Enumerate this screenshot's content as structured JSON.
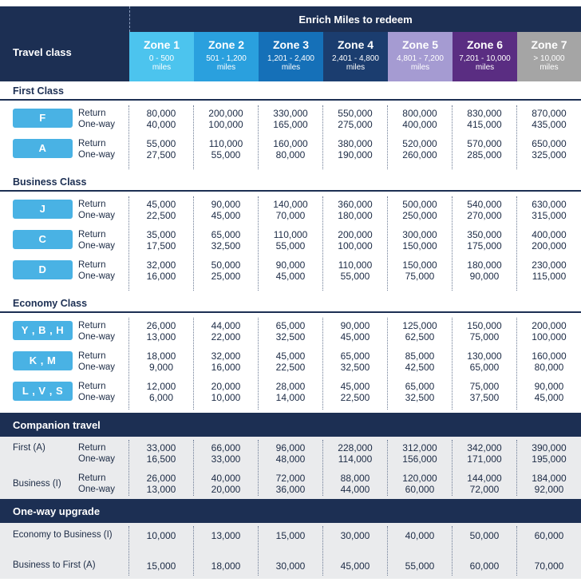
{
  "header": {
    "travel_class": "Travel class",
    "title": "Enrich Miles to redeem"
  },
  "zones": [
    {
      "name": "Zone 1",
      "range": "0 - 500",
      "unit": "miles",
      "color": "#4cc4ee"
    },
    {
      "name": "Zone 2",
      "range": "501 - 1,200",
      "unit": "miles",
      "color": "#2aa0de"
    },
    {
      "name": "Zone 3",
      "range": "1,201 - 2,400",
      "unit": "miles",
      "color": "#1570b8"
    },
    {
      "name": "Zone 4",
      "range": "2,401 - 4,800",
      "unit": "miles",
      "color": "#1b3d6f"
    },
    {
      "name": "Zone 5",
      "range": "4,801 - 7,200",
      "unit": "miles",
      "color": "#a59bd2"
    },
    {
      "name": "Zone 6",
      "range": "7,201 - 10,000",
      "unit": "miles",
      "color": "#5a2d82"
    },
    {
      "name": "Zone 7",
      "range": "> 10,000",
      "unit": "miles",
      "color": "#a5a5a5"
    }
  ],
  "labels": {
    "return": "Return",
    "one_way": "One-way"
  },
  "first_class": {
    "title": "First Class",
    "rows": [
      {
        "code": "F",
        "return": [
          "80,000",
          "200,000",
          "330,000",
          "550,000",
          "800,000",
          "830,000",
          "870,000"
        ],
        "one_way": [
          "40,000",
          "100,000",
          "165,000",
          "275,000",
          "400,000",
          "415,000",
          "435,000"
        ]
      },
      {
        "code": "A",
        "return": [
          "55,000",
          "110,000",
          "160,000",
          "380,000",
          "520,000",
          "570,000",
          "650,000"
        ],
        "one_way": [
          "27,500",
          "55,000",
          "80,000",
          "190,000",
          "260,000",
          "285,000",
          "325,000"
        ]
      }
    ]
  },
  "business_class": {
    "title": "Business Class",
    "rows": [
      {
        "code": "J",
        "return": [
          "45,000",
          "90,000",
          "140,000",
          "360,000",
          "500,000",
          "540,000",
          "630,000"
        ],
        "one_way": [
          "22,500",
          "45,000",
          "70,000",
          "180,000",
          "250,000",
          "270,000",
          "315,000"
        ]
      },
      {
        "code": "C",
        "return": [
          "35,000",
          "65,000",
          "110,000",
          "200,000",
          "300,000",
          "350,000",
          "400,000"
        ],
        "one_way": [
          "17,500",
          "32,500",
          "55,000",
          "100,000",
          "150,000",
          "175,000",
          "200,000"
        ]
      },
      {
        "code": "D",
        "return": [
          "32,000",
          "50,000",
          "90,000",
          "110,000",
          "150,000",
          "180,000",
          "230,000"
        ],
        "one_way": [
          "16,000",
          "25,000",
          "45,000",
          "55,000",
          "75,000",
          "90,000",
          "115,000"
        ]
      }
    ]
  },
  "economy_class": {
    "title": "Economy Class",
    "rows": [
      {
        "code": "Y , B , H",
        "return": [
          "26,000",
          "44,000",
          "65,000",
          "90,000",
          "125,000",
          "150,000",
          "200,000"
        ],
        "one_way": [
          "13,000",
          "22,000",
          "32,500",
          "45,000",
          "62,500",
          "75,000",
          "100,000"
        ]
      },
      {
        "code": "K , M",
        "return": [
          "18,000",
          "32,000",
          "45,000",
          "65,000",
          "85,000",
          "130,000",
          "160,000"
        ],
        "one_way": [
          "9,000",
          "16,000",
          "22,500",
          "32,500",
          "42,500",
          "65,000",
          "80,000"
        ]
      },
      {
        "code": "L , V , S",
        "return": [
          "12,000",
          "20,000",
          "28,000",
          "45,000",
          "65,000",
          "75,000",
          "90,000"
        ],
        "one_way": [
          "6,000",
          "10,000",
          "14,000",
          "22,500",
          "32,500",
          "37,500",
          "45,000"
        ]
      }
    ]
  },
  "companion": {
    "title": "Companion travel",
    "rows": [
      {
        "label": "First (A)",
        "return": [
          "33,000",
          "66,000",
          "96,000",
          "228,000",
          "312,000",
          "342,000",
          "390,000"
        ],
        "one_way": [
          "16,500",
          "33,000",
          "48,000",
          "114,000",
          "156,000",
          "171,000",
          "195,000"
        ]
      },
      {
        "label": "Business (I)",
        "return": [
          "26,000",
          "40,000",
          "72,000",
          "88,000",
          "120,000",
          "144,000",
          "184,000"
        ],
        "one_way": [
          "13,000",
          "20,000",
          "36,000",
          "44,000",
          "60,000",
          "72,000",
          "92,000"
        ]
      }
    ]
  },
  "upgrade": {
    "title": "One-way upgrade",
    "rows": [
      {
        "label": "Economy to Business (I)",
        "values": [
          "10,000",
          "13,000",
          "15,000",
          "30,000",
          "40,000",
          "50,000",
          "60,000"
        ]
      },
      {
        "label": "Business to First (A)",
        "values": [
          "15,000",
          "18,000",
          "30,000",
          "45,000",
          "55,000",
          "60,000",
          "70,000"
        ]
      }
    ]
  }
}
